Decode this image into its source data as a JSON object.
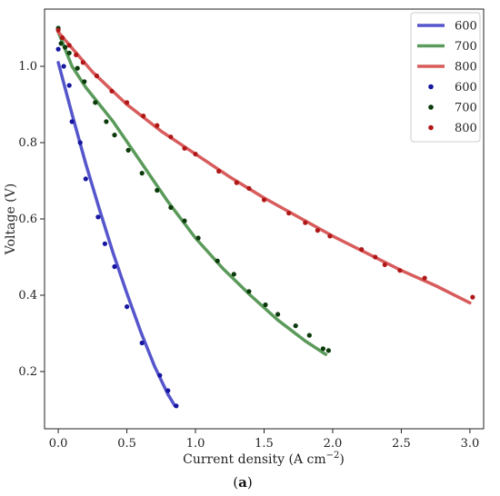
{
  "chart_data": {
    "type": "line",
    "xlabel": "Current density (A cm",
    "xlabel_superscript": "−2",
    "xlabel_suffix": ")",
    "ylabel": "Voltage (V)",
    "caption": "a",
    "xlim": [
      -0.1,
      3.1
    ],
    "ylim": [
      0.05,
      1.15
    ],
    "xticks": [
      0.0,
      0.5,
      1.0,
      1.5,
      2.0,
      2.5,
      3.0
    ],
    "xtick_labels": [
      "0.0",
      "0.5",
      "1.0",
      "1.5",
      "2.0",
      "2.5",
      "3.0"
    ],
    "yticks": [
      0.2,
      0.4,
      0.6,
      0.8,
      1.0
    ],
    "ytick_labels": [
      "0.2",
      "0.4",
      "0.6",
      "0.8",
      "1.0"
    ],
    "grid": false,
    "legend_position": "top-right",
    "legend_entries": [
      {
        "label": "600",
        "kind": "line",
        "color": "#5555cc"
      },
      {
        "label": "700",
        "kind": "line",
        "color": "#5a9a5a"
      },
      {
        "label": "800",
        "kind": "line",
        "color": "#d85c5c"
      },
      {
        "label": "600",
        "kind": "marker",
        "color": "#1616a0"
      },
      {
        "label": "700",
        "kind": "marker",
        "color": "#0c3a0c"
      },
      {
        "label": "800",
        "kind": "marker",
        "color": "#b01818"
      }
    ],
    "fit_series": [
      {
        "name": "600",
        "color": "#5555cc",
        "x": [
          0.0,
          0.1,
          0.2,
          0.3,
          0.4,
          0.5,
          0.6,
          0.7,
          0.8,
          0.85
        ],
        "y": [
          1.01,
          0.875,
          0.745,
          0.625,
          0.51,
          0.405,
          0.305,
          0.215,
          0.14,
          0.11
        ]
      },
      {
        "name": "700",
        "color": "#5a9a5a",
        "x": [
          0.0,
          0.1,
          0.2,
          0.3,
          0.4,
          0.6,
          0.8,
          1.0,
          1.2,
          1.4,
          1.6,
          1.8,
          1.95
        ],
        "y": [
          1.09,
          1.0,
          0.945,
          0.9,
          0.855,
          0.75,
          0.645,
          0.55,
          0.47,
          0.4,
          0.335,
          0.28,
          0.245
        ]
      },
      {
        "name": "800",
        "color": "#d85c5c",
        "x": [
          0.0,
          0.25,
          0.5,
          0.75,
          1.0,
          1.25,
          1.5,
          1.75,
          2.0,
          2.25,
          2.5,
          2.75,
          3.0
        ],
        "y": [
          1.09,
          0.985,
          0.9,
          0.83,
          0.77,
          0.71,
          0.655,
          0.605,
          0.555,
          0.51,
          0.465,
          0.425,
          0.38
        ]
      }
    ],
    "point_series": [
      {
        "name": "600",
        "color": "#1616a0",
        "x": [
          0.0,
          0.04,
          0.08,
          0.1,
          0.16,
          0.2,
          0.29,
          0.34,
          0.41,
          0.5,
          0.61,
          0.74,
          0.8,
          0.86
        ],
        "y": [
          1.045,
          1.0,
          0.95,
          0.855,
          0.8,
          0.705,
          0.605,
          0.535,
          0.475,
          0.37,
          0.275,
          0.19,
          0.15,
          0.11
        ]
      },
      {
        "name": "700",
        "color": "#0c3a0c",
        "x": [
          0.0,
          0.02,
          0.05,
          0.08,
          0.14,
          0.19,
          0.27,
          0.35,
          0.41,
          0.51,
          0.61,
          0.72,
          0.82,
          0.92,
          1.02,
          1.16,
          1.28,
          1.39,
          1.51,
          1.6,
          1.73,
          1.83,
          1.93,
          1.97
        ],
        "y": [
          1.1,
          1.06,
          1.05,
          1.035,
          0.995,
          0.96,
          0.905,
          0.855,
          0.82,
          0.78,
          0.72,
          0.675,
          0.63,
          0.595,
          0.55,
          0.49,
          0.455,
          0.41,
          0.375,
          0.35,
          0.32,
          0.295,
          0.26,
          0.255
        ]
      },
      {
        "name": "800",
        "color": "#b01818",
        "x": [
          0.0,
          0.03,
          0.08,
          0.13,
          0.18,
          0.28,
          0.39,
          0.5,
          0.62,
          0.72,
          0.82,
          0.92,
          1.0,
          1.17,
          1.3,
          1.39,
          1.5,
          1.68,
          1.8,
          1.89,
          1.98,
          2.21,
          2.31,
          2.38,
          2.49,
          2.67,
          3.02
        ],
        "y": [
          1.095,
          1.075,
          1.055,
          1.03,
          1.01,
          0.975,
          0.935,
          0.905,
          0.87,
          0.845,
          0.815,
          0.785,
          0.77,
          0.725,
          0.695,
          0.68,
          0.65,
          0.615,
          0.59,
          0.57,
          0.555,
          0.52,
          0.5,
          0.48,
          0.465,
          0.445,
          0.395
        ]
      }
    ]
  }
}
